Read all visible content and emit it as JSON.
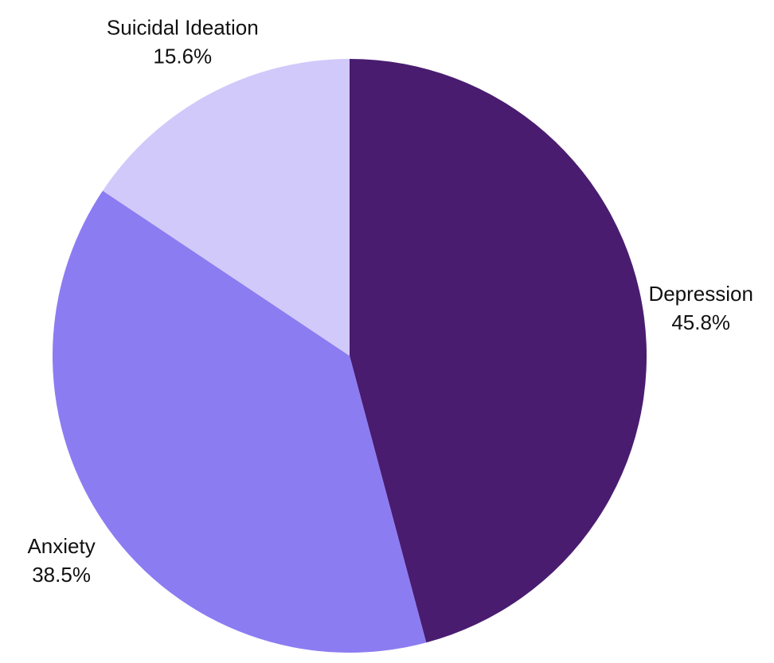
{
  "chart_data": {
    "type": "pie",
    "title": "",
    "start_angle_deg": 0,
    "direction": "clockwise",
    "slices": [
      {
        "name": "Depression",
        "value": 45.8,
        "label": "45.8%",
        "color": "#491c70"
      },
      {
        "name": "Anxiety",
        "value": 38.5,
        "label": "38.5%",
        "color": "#8c7cf2"
      },
      {
        "name": "Suicidal Ideation",
        "value": 15.6,
        "label": "15.6%",
        "color": "#d1c9fa"
      }
    ],
    "legend": "none",
    "labels": "outside"
  }
}
